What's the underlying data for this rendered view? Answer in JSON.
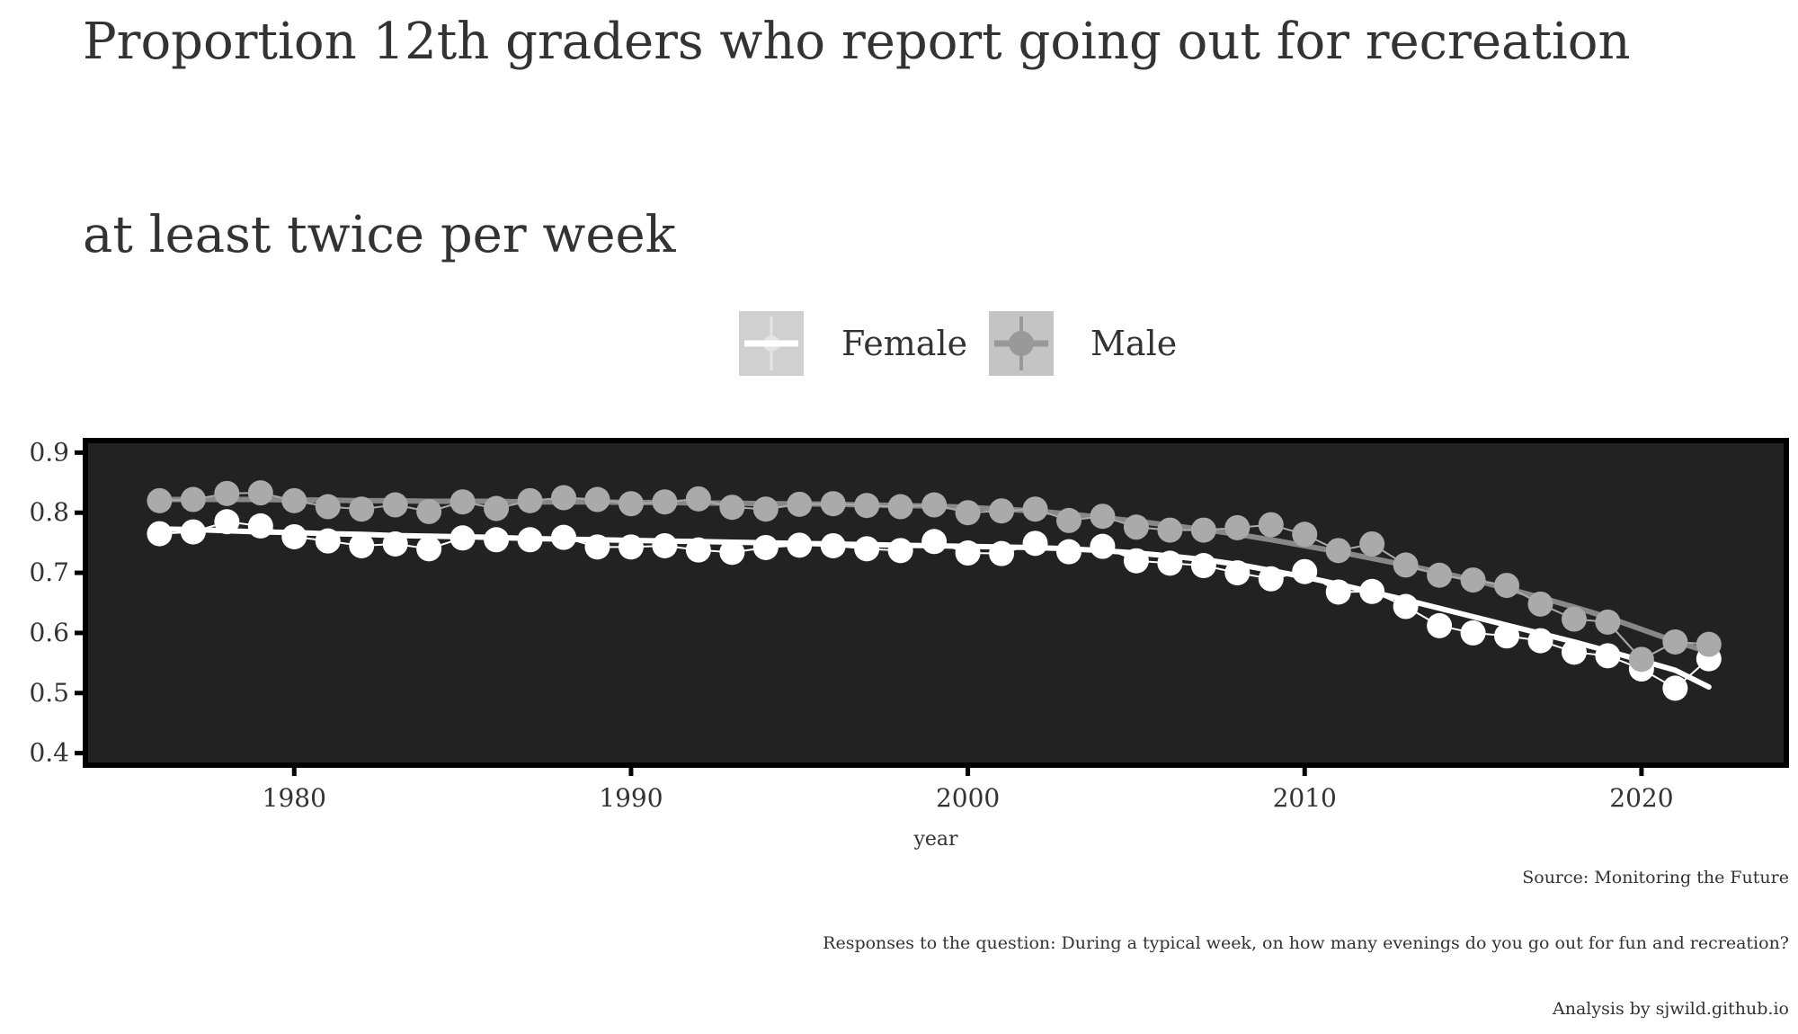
{
  "chart_data": {
    "type": "line",
    "title_lines": [
      "Proportion 12th graders who report going out for recreation",
      "at least twice per week"
    ],
    "xlabel": "year",
    "ylabel": "",
    "xlim": [
      1973.8,
      2024.3
    ],
    "ylim": [
      0.38,
      0.92
    ],
    "x_ticks": [
      1980,
      1990,
      2000,
      2010,
      2020
    ],
    "x_tick_labels": [
      "1980",
      "1990",
      "2000",
      "2010",
      "2020"
    ],
    "y_ticks": [
      0.4,
      0.5,
      0.6,
      0.7,
      0.8,
      0.9
    ],
    "y_tick_labels": [
      "0.4",
      "0.5",
      "0.6",
      "0.7",
      "0.8",
      "0.9"
    ],
    "grid": false,
    "legend_position": "top",
    "panel_background": "#222222",
    "panel_border": "#000000",
    "x": [
      1976,
      1977,
      1978,
      1979,
      1980,
      1981,
      1982,
      1983,
      1984,
      1985,
      1986,
      1987,
      1988,
      1989,
      1990,
      1991,
      1992,
      1993,
      1994,
      1995,
      1996,
      1997,
      1998,
      1999,
      2000,
      2001,
      2002,
      2003,
      2004,
      2005,
      2006,
      2007,
      2008,
      2009,
      2010,
      2011,
      2012,
      2013,
      2014,
      2015,
      2016,
      2017,
      2018,
      2019,
      2020,
      2021,
      2022
    ],
    "series": [
      {
        "name": "Female",
        "color": "#ffffff",
        "values": [
          0.765,
          0.768,
          0.785,
          0.778,
          0.76,
          0.753,
          0.745,
          0.748,
          0.74,
          0.758,
          0.755,
          0.755,
          0.759,
          0.743,
          0.743,
          0.745,
          0.738,
          0.734,
          0.742,
          0.746,
          0.745,
          0.74,
          0.737,
          0.752,
          0.733,
          0.732,
          0.749,
          0.735,
          0.744,
          0.72,
          0.716,
          0.712,
          0.7,
          0.69,
          0.702,
          0.668,
          0.669,
          0.644,
          0.612,
          0.6,
          0.595,
          0.587,
          0.568,
          0.562,
          0.54,
          0.508,
          0.557
        ],
        "trend": [
          0.773,
          0.772,
          0.77,
          0.768,
          0.767,
          0.765,
          0.764,
          0.762,
          0.761,
          0.76,
          0.759,
          0.757,
          0.756,
          0.755,
          0.754,
          0.753,
          0.752,
          0.751,
          0.75,
          0.749,
          0.748,
          0.747,
          0.746,
          0.745,
          0.744,
          0.743,
          0.742,
          0.74,
          0.737,
          0.733,
          0.728,
          0.722,
          0.714,
          0.704,
          0.693,
          0.681,
          0.668,
          0.655,
          0.641,
          0.627,
          0.613,
          0.599,
          0.585,
          0.57,
          0.554,
          0.538,
          0.51
        ]
      },
      {
        "name": "Male",
        "color": "#aaaaaa",
        "values": [
          0.82,
          0.822,
          0.832,
          0.833,
          0.82,
          0.81,
          0.806,
          0.813,
          0.802,
          0.818,
          0.807,
          0.82,
          0.825,
          0.822,
          0.815,
          0.818,
          0.823,
          0.809,
          0.806,
          0.814,
          0.815,
          0.812,
          0.81,
          0.813,
          0.8,
          0.803,
          0.806,
          0.787,
          0.794,
          0.776,
          0.771,
          0.771,
          0.775,
          0.78,
          0.764,
          0.737,
          0.748,
          0.713,
          0.696,
          0.688,
          0.679,
          0.648,
          0.623,
          0.618,
          0.556,
          0.585,
          0.581
        ],
        "trend": [
          0.822,
          0.822,
          0.822,
          0.822,
          0.821,
          0.821,
          0.82,
          0.82,
          0.819,
          0.819,
          0.819,
          0.818,
          0.818,
          0.818,
          0.817,
          0.817,
          0.816,
          0.816,
          0.815,
          0.815,
          0.814,
          0.813,
          0.812,
          0.811,
          0.809,
          0.806,
          0.803,
          0.798,
          0.792,
          0.786,
          0.779,
          0.772,
          0.764,
          0.755,
          0.745,
          0.735,
          0.724,
          0.713,
          0.701,
          0.688,
          0.674,
          0.659,
          0.643,
          0.626,
          0.606,
          0.586,
          0.568
        ]
      }
    ],
    "captions": [
      "Source: Monitoring the Future",
      "Responses to the question: During a typical week, on how many evenings do you go out for fun and recreation?",
      "Analysis by sjwild.github.io"
    ]
  }
}
